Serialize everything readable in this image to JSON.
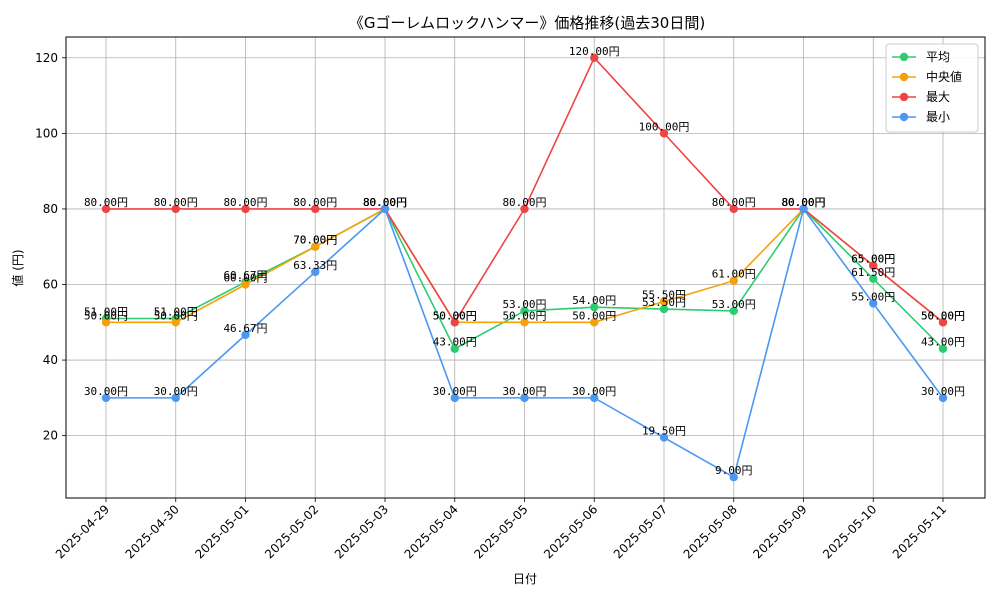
{
  "chart_data": {
    "type": "line",
    "title": "《Gゴーレムロックハンマー》価格推移(過去30日間)",
    "xlabel": "日付",
    "ylabel": "値 (円)",
    "ylim": [
      3.5,
      125.5
    ],
    "yticks": [
      20,
      40,
      60,
      80,
      100,
      120
    ],
    "grid": true,
    "legend_position": "top-right",
    "value_suffix": "円",
    "categories": [
      "2025-04-29",
      "2025-04-30",
      "2025-05-01",
      "2025-05-02",
      "2025-05-03",
      "2025-05-04",
      "2025-05-05",
      "2025-05-06",
      "2025-05-07",
      "2025-05-08",
      "2025-05-09",
      "2025-05-10",
      "2025-05-11"
    ],
    "series": [
      {
        "name": "平均",
        "color": "#2ecc71",
        "values": [
          51.0,
          51.0,
          60.67,
          70.0,
          80.0,
          43.0,
          53.0,
          54.0,
          53.5,
          53.0,
          80.0,
          61.5,
          43.0
        ]
      },
      {
        "name": "中央値",
        "color": "#f5a20a",
        "values": [
          50.0,
          50.0,
          60.0,
          70.0,
          80.0,
          50.0,
          50.0,
          50.0,
          55.5,
          61.0,
          80.0,
          65.0,
          50.0
        ]
      },
      {
        "name": "最大",
        "color": "#ef4444",
        "values": [
          80.0,
          80.0,
          80.0,
          80.0,
          80.0,
          50.0,
          80.0,
          120.0,
          100.0,
          80.0,
          80.0,
          65.0,
          50.0
        ]
      },
      {
        "name": "最小",
        "color": "#4a98f2",
        "values": [
          30.0,
          30.0,
          46.67,
          63.33,
          80.0,
          30.0,
          30.0,
          30.0,
          19.5,
          9.0,
          80.0,
          55.0,
          30.0
        ]
      }
    ]
  }
}
